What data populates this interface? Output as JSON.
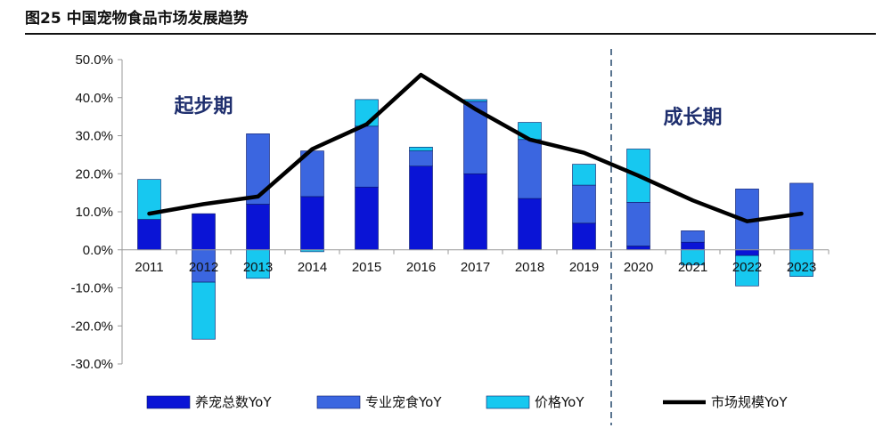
{
  "title": "图25 中国宠物食品市场发展趋势",
  "colors": {
    "pet_count": "#0a14d6",
    "professional_food": "#3b66e0",
    "price": "#17c8f0",
    "market": "#000000",
    "divider": "#5a7590"
  },
  "chart_data": {
    "type": "bar",
    "stacked": true,
    "categories": [
      "2011",
      "2012",
      "2013",
      "2014",
      "2015",
      "2016",
      "2017",
      "2018",
      "2019",
      "2020",
      "2021",
      "2022",
      "2023"
    ],
    "ylim": [
      -30,
      50
    ],
    "yticks": [
      "50.0%",
      "40.0%",
      "30.0%",
      "20.0%",
      "10.0%",
      "0.0%",
      "-10.0%",
      "-20.0%",
      "-30.0%"
    ],
    "ytick_values": [
      50,
      40,
      30,
      20,
      10,
      0,
      -10,
      -20,
      -30
    ],
    "series": [
      {
        "name": "养宠总数YoY",
        "kind": "bar",
        "color_key": "pet_count",
        "values": [
          8.0,
          9.5,
          12.0,
          14.0,
          16.5,
          22.0,
          20.0,
          13.5,
          7.0,
          1.0,
          2.0,
          -1.5,
          0.0
        ]
      },
      {
        "name": "专业宠食YoY",
        "kind": "bar",
        "color_key": "professional_food",
        "values": [
          0.0,
          -8.5,
          18.5,
          12.0,
          16.0,
          4.0,
          19.0,
          15.5,
          10.0,
          11.5,
          3.0,
          16.0,
          17.5
        ]
      },
      {
        "name": "价格YoY",
        "kind": "bar",
        "color_key": "price",
        "values": [
          10.5,
          -15.0,
          -7.5,
          -0.5,
          7.0,
          1.0,
          0.5,
          4.5,
          5.5,
          14.0,
          -4.0,
          -8.0,
          -7.0
        ]
      },
      {
        "name": "市场规模YoY",
        "kind": "line",
        "color_key": "market",
        "values": [
          9.5,
          12.0,
          14.0,
          26.5,
          33.0,
          46.0,
          37.0,
          29.0,
          25.5,
          19.5,
          13.0,
          7.5,
          9.5
        ]
      }
    ],
    "annotations": [
      {
        "text": "起步期",
        "at_category": "2012",
        "y": 38
      },
      {
        "text": "成长期",
        "at_category": "2021",
        "y": 35
      }
    ],
    "divider_between": [
      "2019",
      "2020"
    ],
    "legend": {
      "placement": "bottom"
    }
  }
}
